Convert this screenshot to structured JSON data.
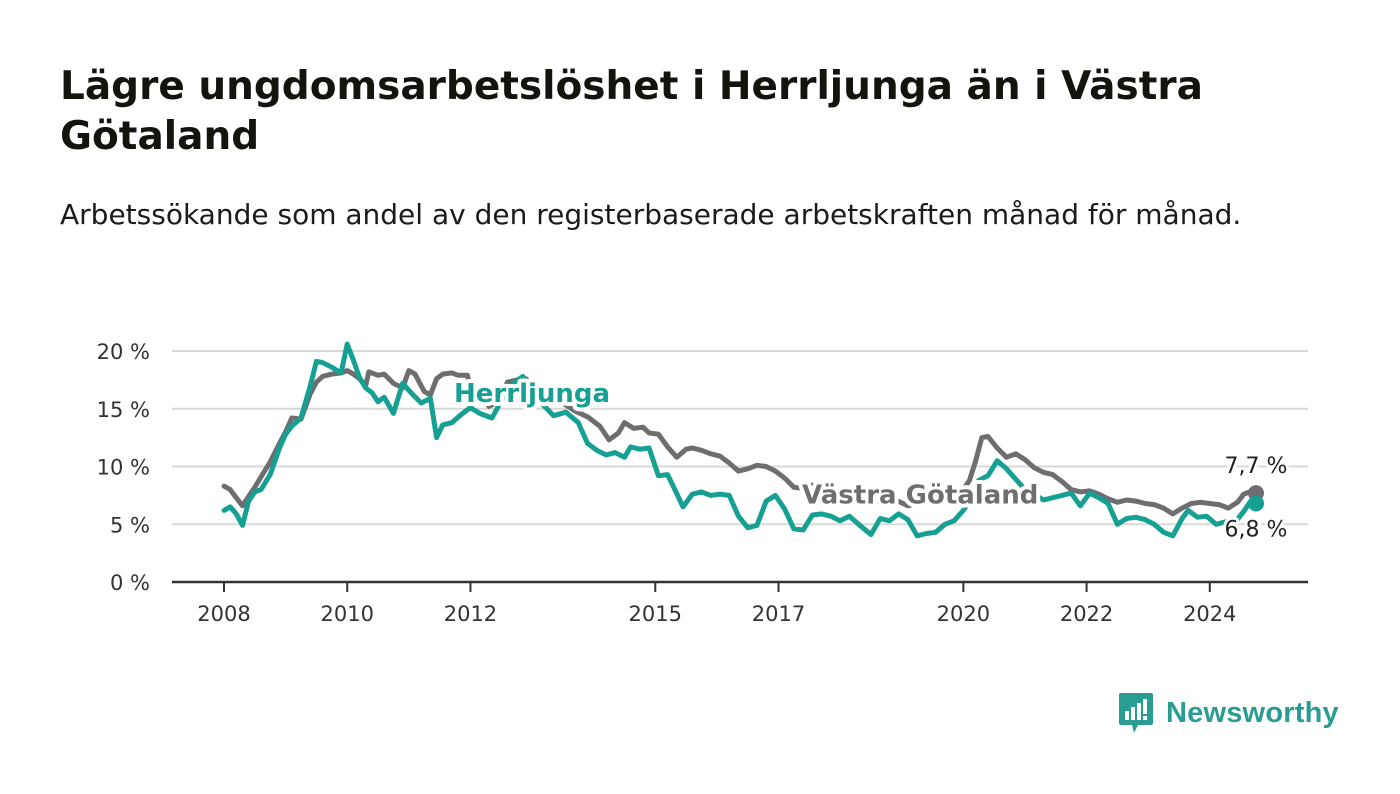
{
  "header": {
    "title": "Lägre ungdomsarbetslöshet i Herrljunga än i Västra Götaland",
    "subtitle": "Arbetssökande som andel av den registerbaserade arbetskraften månad för månad."
  },
  "brand": {
    "name": "Newsworthy",
    "icon": "newsworthy-logo-icon",
    "color": "#2a9d92"
  },
  "chart_data": {
    "type": "line",
    "title": "Lägre ungdomsarbetslöshet i Herrljunga än i Västra Götaland",
    "subtitle": "Arbetssökande som andel av den registerbaserade arbetskraften månad för månad.",
    "xlabel": "",
    "ylabel": "",
    "x_range": [
      2007.67,
      2025.0
    ],
    "ylim": [
      0,
      20
    ],
    "yticks": [
      0,
      5,
      10,
      15,
      20
    ],
    "ytick_labels": [
      "0 %",
      "5 %",
      "10 %",
      "15 %",
      "20 %"
    ],
    "xticks": [
      2008,
      2010,
      2012,
      2015,
      2017,
      2020,
      2022,
      2024
    ],
    "xtick_labels": [
      "2008",
      "2010",
      "2012",
      "2015",
      "2017",
      "2020",
      "2022",
      "2024"
    ],
    "grid": true,
    "legend": "direct labels on lines",
    "series": [
      {
        "name": "Västra Götaland",
        "color": "#6e6d70",
        "end_label": "7,7 %",
        "points": [
          [
            2008.0,
            8.3
          ],
          [
            2008.1,
            8.0
          ],
          [
            2008.2,
            7.3
          ],
          [
            2008.3,
            6.6
          ],
          [
            2008.4,
            7.4
          ],
          [
            2008.5,
            8.2
          ],
          [
            2008.6,
            9.1
          ],
          [
            2008.75,
            10.4
          ],
          [
            2008.9,
            12.0
          ],
          [
            2009.0,
            13.0
          ],
          [
            2009.1,
            14.2
          ],
          [
            2009.25,
            14.1
          ],
          [
            2009.4,
            16.3
          ],
          [
            2009.5,
            17.3
          ],
          [
            2009.6,
            17.8
          ],
          [
            2009.75,
            18.0
          ],
          [
            2009.9,
            18.1
          ],
          [
            2010.0,
            18.3
          ],
          [
            2010.1,
            18.0
          ],
          [
            2010.2,
            17.6
          ],
          [
            2010.3,
            17.0
          ],
          [
            2010.35,
            18.2
          ],
          [
            2010.5,
            17.9
          ],
          [
            2010.6,
            18.0
          ],
          [
            2010.75,
            17.2
          ],
          [
            2010.9,
            16.8
          ],
          [
            2011.0,
            18.3
          ],
          [
            2011.1,
            18.0
          ],
          [
            2011.25,
            16.5
          ],
          [
            2011.35,
            16.2
          ],
          [
            2011.45,
            17.6
          ],
          [
            2011.55,
            18.0
          ],
          [
            2011.7,
            18.1
          ],
          [
            2011.8,
            17.9
          ],
          [
            2011.95,
            17.9
          ],
          [
            2012.0,
            16.7
          ],
          [
            2012.15,
            16.4
          ],
          [
            2012.3,
            15.2
          ],
          [
            2012.45,
            15.6
          ],
          [
            2012.6,
            17.3
          ],
          [
            2012.75,
            17.5
          ],
          [
            2012.9,
            17.6
          ],
          [
            2013.1,
            16.3
          ],
          [
            2013.3,
            15.6
          ],
          [
            2013.5,
            15.5
          ],
          [
            2013.7,
            14.8
          ],
          [
            2013.9,
            14.3
          ],
          [
            2014.1,
            13.5
          ],
          [
            2014.25,
            12.3
          ],
          [
            2014.4,
            12.9
          ],
          [
            2014.5,
            13.8
          ],
          [
            2014.65,
            13.3
          ],
          [
            2014.8,
            13.4
          ],
          [
            2014.9,
            12.9
          ],
          [
            2015.05,
            12.8
          ],
          [
            2015.2,
            11.7
          ],
          [
            2015.35,
            10.8
          ],
          [
            2015.5,
            11.5
          ],
          [
            2015.6,
            11.6
          ],
          [
            2015.75,
            11.4
          ],
          [
            2015.9,
            11.1
          ],
          [
            2016.05,
            10.9
          ],
          [
            2016.2,
            10.3
          ],
          [
            2016.35,
            9.6
          ],
          [
            2016.5,
            9.8
          ],
          [
            2016.65,
            10.1
          ],
          [
            2016.8,
            10.0
          ],
          [
            2016.95,
            9.6
          ],
          [
            2017.1,
            9.0
          ],
          [
            2017.25,
            8.2
          ],
          [
            2017.4,
            8.1
          ],
          [
            2017.55,
            8.4
          ],
          [
            2017.7,
            8.0
          ],
          [
            2017.9,
            7.4
          ],
          [
            2018.1,
            7.6
          ],
          [
            2018.3,
            7.0
          ],
          [
            2018.5,
            7.2
          ],
          [
            2018.7,
            6.8
          ],
          [
            2018.9,
            7.1
          ],
          [
            2019.1,
            6.6
          ],
          [
            2019.3,
            6.9
          ],
          [
            2019.5,
            7.2
          ],
          [
            2019.7,
            7.6
          ],
          [
            2019.9,
            7.8
          ],
          [
            2020.0,
            8.0
          ],
          [
            2020.1,
            8.8
          ],
          [
            2020.2,
            10.5
          ],
          [
            2020.3,
            12.5
          ],
          [
            2020.4,
            12.6
          ],
          [
            2020.55,
            11.6
          ],
          [
            2020.7,
            10.8
          ],
          [
            2020.85,
            11.1
          ],
          [
            2021.0,
            10.6
          ],
          [
            2021.15,
            9.9
          ],
          [
            2021.3,
            9.5
          ],
          [
            2021.45,
            9.3
          ],
          [
            2021.6,
            8.7
          ],
          [
            2021.75,
            8.0
          ],
          [
            2021.9,
            7.8
          ],
          [
            2022.05,
            7.9
          ],
          [
            2022.2,
            7.6
          ],
          [
            2022.35,
            7.2
          ],
          [
            2022.5,
            6.9
          ],
          [
            2022.65,
            7.1
          ],
          [
            2022.8,
            7.0
          ],
          [
            2022.95,
            6.8
          ],
          [
            2023.1,
            6.7
          ],
          [
            2023.25,
            6.4
          ],
          [
            2023.4,
            5.9
          ],
          [
            2023.55,
            6.4
          ],
          [
            2023.7,
            6.8
          ],
          [
            2023.85,
            6.9
          ],
          [
            2024.0,
            6.8
          ],
          [
            2024.15,
            6.7
          ],
          [
            2024.3,
            6.4
          ],
          [
            2024.45,
            6.9
          ],
          [
            2024.55,
            7.6
          ],
          [
            2024.65,
            7.8
          ],
          [
            2024.75,
            7.7
          ]
        ]
      },
      {
        "name": "Herrljunga",
        "color": "#16a093",
        "end_label": "6,8 %",
        "points": [
          [
            2008.0,
            6.2
          ],
          [
            2008.1,
            6.5
          ],
          [
            2008.2,
            5.9
          ],
          [
            2008.3,
            4.9
          ],
          [
            2008.4,
            7.0
          ],
          [
            2008.5,
            7.8
          ],
          [
            2008.6,
            8.0
          ],
          [
            2008.75,
            9.3
          ],
          [
            2008.9,
            11.6
          ],
          [
            2009.0,
            12.8
          ],
          [
            2009.1,
            13.5
          ],
          [
            2009.25,
            14.2
          ],
          [
            2009.4,
            17.0
          ],
          [
            2009.5,
            19.1
          ],
          [
            2009.6,
            19.0
          ],
          [
            2009.75,
            18.6
          ],
          [
            2009.9,
            18.1
          ],
          [
            2010.0,
            20.6
          ],
          [
            2010.1,
            19.2
          ],
          [
            2010.2,
            17.7
          ],
          [
            2010.3,
            16.8
          ],
          [
            2010.4,
            16.4
          ],
          [
            2010.5,
            15.6
          ],
          [
            2010.6,
            16.0
          ],
          [
            2010.75,
            14.6
          ],
          [
            2010.9,
            17.2
          ],
          [
            2011.05,
            16.3
          ],
          [
            2011.2,
            15.5
          ],
          [
            2011.35,
            15.9
          ],
          [
            2011.45,
            12.5
          ],
          [
            2011.55,
            13.6
          ],
          [
            2011.7,
            13.8
          ],
          [
            2011.85,
            14.5
          ],
          [
            2012.0,
            15.1
          ],
          [
            2012.15,
            14.6
          ],
          [
            2012.35,
            14.2
          ],
          [
            2012.5,
            15.7
          ],
          [
            2012.65,
            17.0
          ],
          [
            2012.85,
            17.8
          ],
          [
            2013.0,
            16.6
          ],
          [
            2013.15,
            15.5
          ],
          [
            2013.35,
            14.4
          ],
          [
            2013.55,
            14.7
          ],
          [
            2013.75,
            13.8
          ],
          [
            2013.9,
            12.0
          ],
          [
            2014.05,
            11.4
          ],
          [
            2014.2,
            11.0
          ],
          [
            2014.35,
            11.2
          ],
          [
            2014.5,
            10.8
          ],
          [
            2014.6,
            11.7
          ],
          [
            2014.75,
            11.5
          ],
          [
            2014.9,
            11.6
          ],
          [
            2015.05,
            9.2
          ],
          [
            2015.2,
            9.3
          ],
          [
            2015.3,
            8.2
          ],
          [
            2015.45,
            6.5
          ],
          [
            2015.6,
            7.6
          ],
          [
            2015.75,
            7.8
          ],
          [
            2015.9,
            7.5
          ],
          [
            2016.05,
            7.6
          ],
          [
            2016.2,
            7.5
          ],
          [
            2016.35,
            5.7
          ],
          [
            2016.5,
            4.7
          ],
          [
            2016.65,
            4.9
          ],
          [
            2016.8,
            7.0
          ],
          [
            2016.95,
            7.5
          ],
          [
            2017.1,
            6.3
          ],
          [
            2017.25,
            4.6
          ],
          [
            2017.4,
            4.5
          ],
          [
            2017.55,
            5.8
          ],
          [
            2017.7,
            5.9
          ],
          [
            2017.85,
            5.7
          ],
          [
            2018.0,
            5.3
          ],
          [
            2018.15,
            5.7
          ],
          [
            2018.3,
            5.0
          ],
          [
            2018.5,
            4.1
          ],
          [
            2018.65,
            5.5
          ],
          [
            2018.8,
            5.3
          ],
          [
            2018.95,
            5.9
          ],
          [
            2019.1,
            5.4
          ],
          [
            2019.25,
            4.0
          ],
          [
            2019.4,
            4.2
          ],
          [
            2019.55,
            4.3
          ],
          [
            2019.7,
            5.0
          ],
          [
            2019.85,
            5.3
          ],
          [
            2020.0,
            6.2
          ],
          [
            2020.1,
            7.0
          ],
          [
            2020.25,
            8.8
          ],
          [
            2020.4,
            9.2
          ],
          [
            2020.55,
            10.5
          ],
          [
            2020.7,
            9.8
          ],
          [
            2020.85,
            8.9
          ],
          [
            2021.0,
            8.0
          ],
          [
            2021.15,
            7.6
          ],
          [
            2021.3,
            7.1
          ],
          [
            2021.45,
            7.3
          ],
          [
            2021.6,
            7.5
          ],
          [
            2021.75,
            7.7
          ],
          [
            2021.9,
            6.6
          ],
          [
            2022.05,
            7.7
          ],
          [
            2022.2,
            7.3
          ],
          [
            2022.35,
            6.8
          ],
          [
            2022.5,
            5.0
          ],
          [
            2022.65,
            5.5
          ],
          [
            2022.8,
            5.6
          ],
          [
            2022.95,
            5.4
          ],
          [
            2023.1,
            5.0
          ],
          [
            2023.25,
            4.3
          ],
          [
            2023.4,
            4.0
          ],
          [
            2023.55,
            5.5
          ],
          [
            2023.65,
            6.2
          ],
          [
            2023.8,
            5.6
          ],
          [
            2023.95,
            5.7
          ],
          [
            2024.1,
            5.0
          ],
          [
            2024.25,
            5.2
          ],
          [
            2024.4,
            5.1
          ],
          [
            2024.55,
            6.1
          ],
          [
            2024.65,
            6.9
          ],
          [
            2024.75,
            6.8
          ]
        ]
      }
    ],
    "series_labels": [
      {
        "name": "Herrljunga",
        "x": 2013.0,
        "y": 15.6
      },
      {
        "name": "Västra Götaland",
        "x": 2019.3,
        "y": 6.8
      }
    ]
  }
}
